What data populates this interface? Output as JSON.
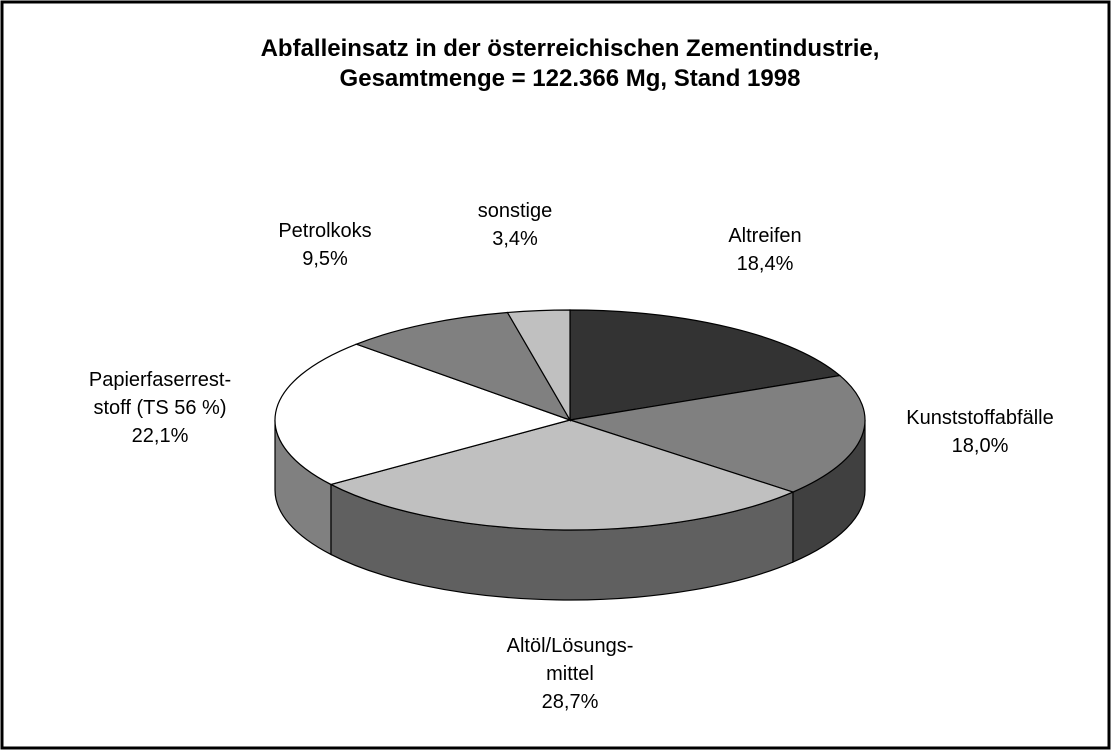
{
  "chart_data": {
    "type": "pie3d",
    "title": "Abfalleinsatz in der österreichischen Zementindustrie,\nGesamtmenge = 122.366 Mg, Stand 1998",
    "categories": [
      "Altreifen",
      "Kunststoffabfälle",
      "Altöl/Lösungs-\nmittel",
      "Papierfaserrest-\nstoff (TS 56 %)",
      "Petrolkoks",
      "sonstige"
    ],
    "values": [
      18.4,
      18.0,
      28.7,
      22.1,
      9.5,
      3.4
    ],
    "value_labels": [
      "18,4%",
      "18,0%",
      "28,7%",
      "22,1%",
      "9,5%",
      "3,4%"
    ],
    "colors": [
      "#333333",
      "#808080",
      "#c0c0c0",
      "#ffffff",
      "#808080",
      "#c0c0c0"
    ]
  }
}
